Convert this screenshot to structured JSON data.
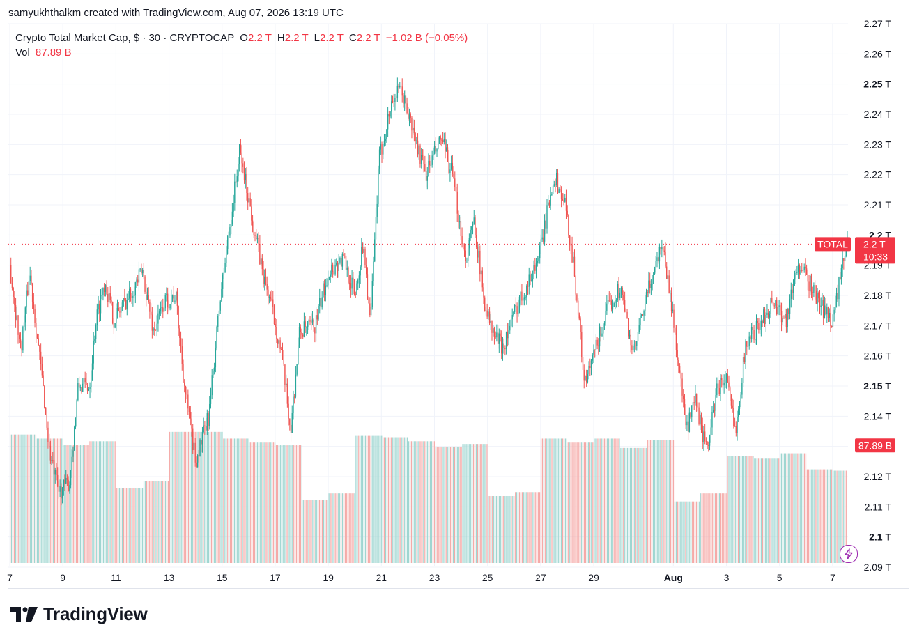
{
  "header": {
    "text": "samyukhthalkm created with TradingView.com, Aug 07, 2026 13:19 UTC"
  },
  "legend": {
    "symbol": "Crypto Total Market Cap, $ · 30 · CRYPTOCAP",
    "o_label": "O",
    "o_value": "2.2 T",
    "h_label": "H",
    "h_value": "2.2 T",
    "l_label": "L",
    "l_value": "2.2 T",
    "c_label": "C",
    "c_value": "2.2 T",
    "change": "−1.02 B (−0.05%)",
    "vol_label": "Vol",
    "vol_value": "87.89 B"
  },
  "price_tag": {
    "symbol": "TOTAL",
    "price": "2.2 T",
    "countdown": "10:33"
  },
  "volume_tag": "87.89 B",
  "footer": {
    "brand": "TradingView"
  },
  "colors": {
    "up": "#26a69a",
    "down": "#ef5350",
    "accent": "#f23645",
    "grid": "#f0f3fa",
    "text": "#131722"
  },
  "icons": {
    "alert": "lightning-icon",
    "logo": "tradingview-logo-icon"
  },
  "chart_data": {
    "type": "candlestick",
    "title": "Crypto Total Market Cap, $ · 30 · CRYPTOCAP",
    "interval": "30",
    "y_axis": {
      "range": [
        2.09,
        2.27
      ],
      "ticks": [
        "2.09 T",
        "2.1 T",
        "2.11 T",
        "2.12 T",
        "2.13 T",
        "2.14 T",
        "2.15 T",
        "2.16 T",
        "2.17 T",
        "2.18 T",
        "2.19 T",
        "2.2 T",
        "2.21 T",
        "2.22 T",
        "2.23 T",
        "2.24 T",
        "2.25 T",
        "2.26 T",
        "2.27 T"
      ],
      "tick_values": [
        2.09,
        2.1,
        2.11,
        2.12,
        2.13,
        2.14,
        2.15,
        2.16,
        2.17,
        2.18,
        2.19,
        2.2,
        2.21,
        2.22,
        2.23,
        2.24,
        2.25,
        2.26,
        2.27
      ],
      "bold_ticks": [
        "2.1 T",
        "2.15 T",
        "2.2 T",
        "2.25 T"
      ],
      "position": "right"
    },
    "x_axis": {
      "ticks": [
        "7",
        "9",
        "11",
        "13",
        "15",
        "17",
        "19",
        "21",
        "23",
        "25",
        "27",
        "29",
        "Aug",
        "3",
        "5",
        "7"
      ],
      "tick_dates": [
        "2026-07-07",
        "2026-07-09",
        "2026-07-11",
        "2026-07-13",
        "2026-07-15",
        "2026-07-17",
        "2026-07-19",
        "2026-07-21",
        "2026-07-23",
        "2026-07-25",
        "2026-07-27",
        "2026-07-29",
        "2026-08-01",
        "2026-08-03",
        "2026-08-05",
        "2026-08-07"
      ],
      "bold_ticks": [
        "Aug"
      ],
      "range": [
        "2026-07-07",
        "2026-08-07"
      ]
    },
    "price_path": [
      [
        "2026-07-07T00:00",
        2.19
      ],
      [
        "2026-07-07T10:00",
        2.162
      ],
      [
        "2026-07-07T18:00",
        2.188
      ],
      [
        "2026-07-08T06:00",
        2.15
      ],
      [
        "2026-07-08T12:00",
        2.128
      ],
      [
        "2026-07-08T20:00",
        2.115
      ],
      [
        "2026-07-09T06:00",
        2.118
      ],
      [
        "2026-07-09T14:00",
        2.15
      ],
      [
        "2026-07-10T00:00",
        2.15
      ],
      [
        "2026-07-10T06:00",
        2.172
      ],
      [
        "2026-07-10T14:00",
        2.185
      ],
      [
        "2026-07-10T22:00",
        2.172
      ],
      [
        "2026-07-11T12:00",
        2.18
      ],
      [
        "2026-07-12T00:00",
        2.188
      ],
      [
        "2026-07-12T10:00",
        2.168
      ],
      [
        "2026-07-12T20:00",
        2.178
      ],
      [
        "2026-07-13T06:00",
        2.18
      ],
      [
        "2026-07-13T14:00",
        2.15
      ],
      [
        "2026-07-14T00:00",
        2.125
      ],
      [
        "2026-07-14T12:00",
        2.14
      ],
      [
        "2026-07-14T22:00",
        2.178
      ],
      [
        "2026-07-15T06:00",
        2.2
      ],
      [
        "2026-07-15T16:00",
        2.228
      ],
      [
        "2026-07-16T02:00",
        2.208
      ],
      [
        "2026-07-16T14:00",
        2.185
      ],
      [
        "2026-07-16T20:00",
        2.178
      ],
      [
        "2026-07-17T06:00",
        2.16
      ],
      [
        "2026-07-17T14:00",
        2.135
      ],
      [
        "2026-07-17T22:00",
        2.168
      ],
      [
        "2026-07-18T12:00",
        2.17
      ],
      [
        "2026-07-19T00:00",
        2.188
      ],
      [
        "2026-07-19T14:00",
        2.192
      ],
      [
        "2026-07-20T00:00",
        2.18
      ],
      [
        "2026-07-20T08:00",
        2.198
      ],
      [
        "2026-07-20T14:00",
        2.17
      ],
      [
        "2026-07-20T22:00",
        2.225
      ],
      [
        "2026-07-21T10:00",
        2.245
      ],
      [
        "2026-07-21T18:00",
        2.248
      ],
      [
        "2026-07-22T08:00",
        2.23
      ],
      [
        "2026-07-22T16:00",
        2.22
      ],
      [
        "2026-07-23T06:00",
        2.232
      ],
      [
        "2026-07-23T16:00",
        2.22
      ],
      [
        "2026-07-24T04:00",
        2.192
      ],
      [
        "2026-07-24T12:00",
        2.205
      ],
      [
        "2026-07-24T20:00",
        2.18
      ],
      [
        "2026-07-25T04:00",
        2.168
      ],
      [
        "2026-07-25T14:00",
        2.163
      ],
      [
        "2026-07-26T04:00",
        2.178
      ],
      [
        "2026-07-26T14:00",
        2.185
      ],
      [
        "2026-07-27T00:00",
        2.195
      ],
      [
        "2026-07-27T12:00",
        2.22
      ],
      [
        "2026-07-27T22:00",
        2.21
      ],
      [
        "2026-07-28T06:00",
        2.19
      ],
      [
        "2026-07-28T16:00",
        2.15
      ],
      [
        "2026-07-29T00:00",
        2.16
      ],
      [
        "2026-07-29T12:00",
        2.175
      ],
      [
        "2026-07-30T00:00",
        2.183
      ],
      [
        "2026-07-30T12:00",
        2.16
      ],
      [
        "2026-07-31T00:00",
        2.18
      ],
      [
        "2026-07-31T14:00",
        2.198
      ],
      [
        "2026-08-01T00:00",
        2.172
      ],
      [
        "2026-08-01T12:00",
        2.135
      ],
      [
        "2026-08-01T20:00",
        2.145
      ],
      [
        "2026-08-02T06:00",
        2.128
      ],
      [
        "2026-08-02T16:00",
        2.15
      ],
      [
        "2026-08-03T00:00",
        2.152
      ],
      [
        "2026-08-03T08:00",
        2.135
      ],
      [
        "2026-08-03T18:00",
        2.165
      ],
      [
        "2026-08-04T06:00",
        2.17
      ],
      [
        "2026-08-04T18:00",
        2.178
      ],
      [
        "2026-08-05T06:00",
        2.172
      ],
      [
        "2026-08-05T16:00",
        2.19
      ],
      [
        "2026-08-06T02:00",
        2.185
      ],
      [
        "2026-08-06T14:00",
        2.176
      ],
      [
        "2026-08-07T00:00",
        2.172
      ],
      [
        "2026-08-07T13:19",
        2.198
      ]
    ],
    "last_price": 2.197,
    "volume": {
      "unit": "B",
      "last_value": 87.89,
      "daily": [
        [
          "2026-07-07",
          96
        ],
        [
          "2026-07-08",
          93
        ],
        [
          "2026-07-09",
          88
        ],
        [
          "2026-07-10",
          91
        ],
        [
          "2026-07-11",
          56
        ],
        [
          "2026-07-12",
          61
        ],
        [
          "2026-07-13",
          98
        ],
        [
          "2026-07-14",
          98
        ],
        [
          "2026-07-15",
          93
        ],
        [
          "2026-07-16",
          90
        ],
        [
          "2026-07-17",
          88
        ],
        [
          "2026-07-18",
          47
        ],
        [
          "2026-07-19",
          52
        ],
        [
          "2026-07-20",
          95
        ],
        [
          "2026-07-21",
          94
        ],
        [
          "2026-07-22",
          91
        ],
        [
          "2026-07-23",
          87
        ],
        [
          "2026-07-24",
          89
        ],
        [
          "2026-07-25",
          50
        ],
        [
          "2026-07-26",
          53
        ],
        [
          "2026-07-27",
          93
        ],
        [
          "2026-07-28",
          90
        ],
        [
          "2026-07-29",
          93
        ],
        [
          "2026-07-30",
          86
        ],
        [
          "2026-07-31",
          92
        ],
        [
          "2026-08-01",
          46
        ],
        [
          "2026-08-02",
          52
        ],
        [
          "2026-08-03",
          80
        ],
        [
          "2026-08-04",
          78
        ],
        [
          "2026-08-05",
          82
        ],
        [
          "2026-08-06",
          70
        ],
        [
          "2026-08-07",
          69
        ]
      ]
    }
  }
}
